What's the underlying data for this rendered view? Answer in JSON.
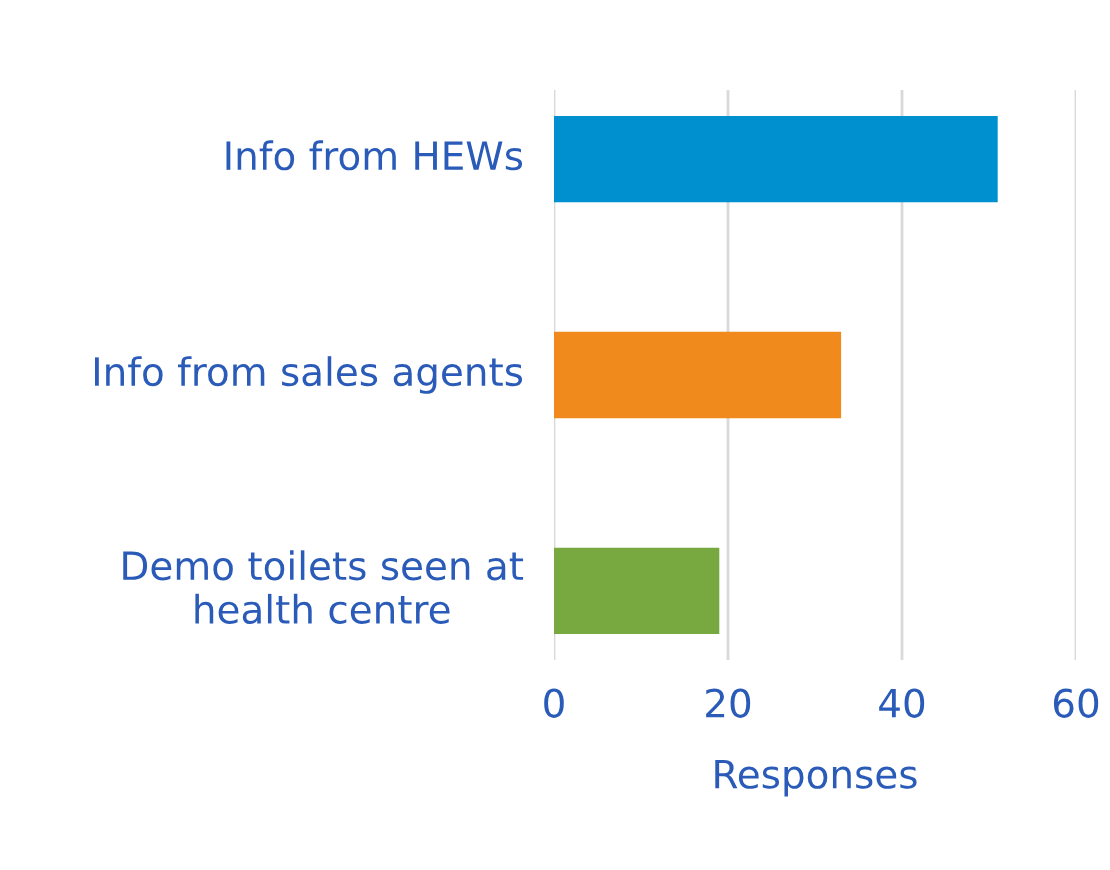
{
  "chart_data": {
    "type": "bar",
    "orientation": "horizontal",
    "categories": [
      "Info from HEWs",
      "Info from sales agents",
      "Demo toilets seen at health centre"
    ],
    "values": [
      51,
      33,
      19
    ],
    "colors": [
      "#0090d0",
      "#f08a1c",
      "#78a840"
    ],
    "xlabel": "Responses",
    "xlim": [
      0,
      60
    ],
    "xticks": [
      0,
      20,
      40,
      60
    ],
    "grid": "x"
  }
}
